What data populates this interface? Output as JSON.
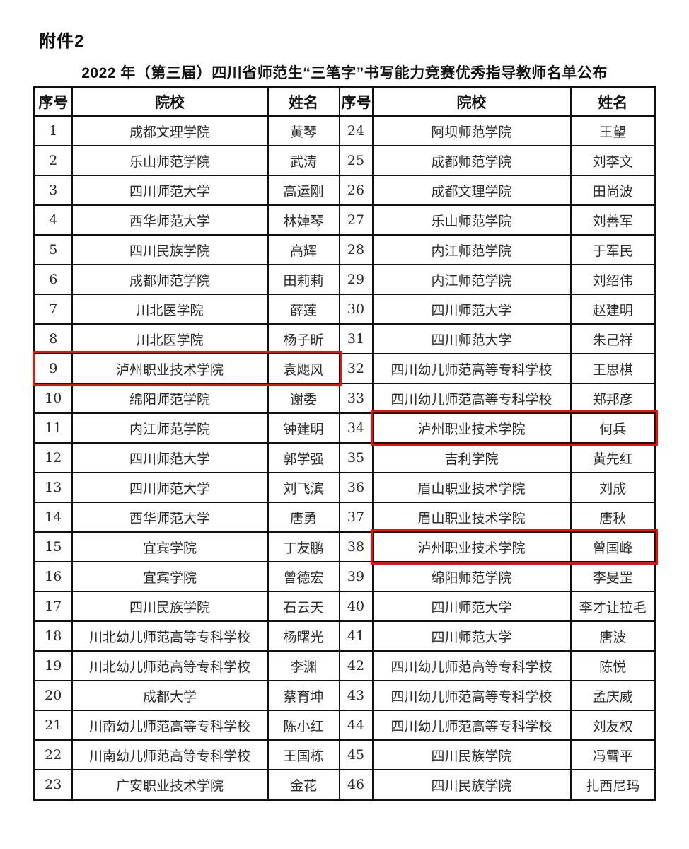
{
  "page": {
    "attachment_label": "附件2",
    "title": "2022 年（第三届）四川省师范生“三笔字”书写能力竞赛优秀指导教师名单公布"
  },
  "table": {
    "headers": [
      "序号",
      "院校",
      "姓名",
      "序号",
      "院校",
      "姓名"
    ],
    "rows": [
      [
        "1",
        "成都文理学院",
        "黄琴",
        "24",
        "阿坝师范学院",
        "王望"
      ],
      [
        "2",
        "乐山师范学院",
        "武涛",
        "25",
        "成都师范学院",
        "刘李文"
      ],
      [
        "3",
        "四川师范大学",
        "高运刚",
        "26",
        "成都文理学院",
        "田尚波"
      ],
      [
        "4",
        "西华师范大学",
        "林婥琴",
        "27",
        "乐山师范学院",
        "刘善军"
      ],
      [
        "5",
        "四川民族学院",
        "高辉",
        "28",
        "内江师范学院",
        "于军民"
      ],
      [
        "6",
        "成都师范学院",
        "田莉莉",
        "29",
        "内江师范学院",
        "刘绍伟"
      ],
      [
        "7",
        "川北医学院",
        "薛莲",
        "30",
        "四川师范大学",
        "赵建明"
      ],
      [
        "8",
        "川北医学院",
        "杨子昕",
        "31",
        "四川师范大学",
        "朱己祥"
      ],
      [
        "9",
        "泸州职业技术学院",
        "袁飓风",
        "32",
        "四川幼儿师范高等专科学校",
        "王思棋"
      ],
      [
        "10",
        "绵阳师范学院",
        "谢委",
        "33",
        "四川幼儿师范高等专科学校",
        "郑邦彦"
      ],
      [
        "11",
        "内江师范学院",
        "钟建明",
        "34",
        "泸州职业技术学院",
        "何兵"
      ],
      [
        "12",
        "四川师范大学",
        "郭学强",
        "35",
        "吉利学院",
        "黄先红"
      ],
      [
        "13",
        "四川师范大学",
        "刘飞滨",
        "36",
        "眉山职业技术学院",
        "刘成"
      ],
      [
        "14",
        "西华师范大学",
        "唐勇",
        "37",
        "眉山职业技术学院",
        "唐秋"
      ],
      [
        "15",
        "宜宾学院",
        "丁友鹏",
        "38",
        "泸州职业技术学院",
        "曾国峰"
      ],
      [
        "16",
        "宜宾学院",
        "曾德宏",
        "39",
        "绵阳师范学院",
        "李旻罡"
      ],
      [
        "17",
        "四川民族学院",
        "石云天",
        "40",
        "四川师范大学",
        "李才让拉毛"
      ],
      [
        "18",
        "川北幼儿师范高等专科学校",
        "杨曙光",
        "41",
        "四川师范大学",
        "唐波"
      ],
      [
        "19",
        "川北幼儿师范高等专科学校",
        "李渊",
        "42",
        "四川幼儿师范高等专科学校",
        "陈悦"
      ],
      [
        "20",
        "成都大学",
        "蔡育坤",
        "43",
        "四川幼儿师范高等专科学校",
        "孟庆威"
      ],
      [
        "21",
        "川南幼儿师范高等专科学校",
        "陈小红",
        "44",
        "四川幼儿师范高等专科学校",
        "刘友权"
      ],
      [
        "22",
        "川南幼儿师范高等专科学校",
        "王国栋",
        "45",
        "四川民族学院",
        "冯雪平"
      ],
      [
        "23",
        "广安职业技术学院",
        "金花",
        "46",
        "四川民族学院",
        "扎西尼玛"
      ]
    ],
    "highlight_color": "#f20d0d",
    "highlights": [
      {
        "row_no": "9",
        "cols": [
          0,
          2
        ]
      },
      {
        "row_no": "34",
        "cols": [
          4,
          5
        ]
      },
      {
        "row_no": "38",
        "cols": [
          4,
          5
        ]
      }
    ]
  }
}
